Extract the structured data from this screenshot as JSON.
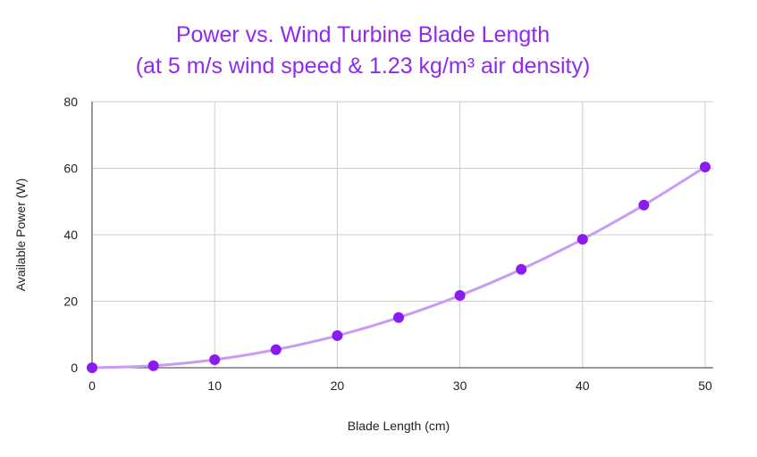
{
  "chart_data": {
    "type": "line",
    "title": "Power vs. Wind Turbine Blade Length",
    "subtitle": "(at 5 m/s wind speed & 1.23 kg/m³ air density)",
    "xlabel": "Blade Length (cm)",
    "ylabel": "Available Power (W)",
    "xlim": [
      0,
      50
    ],
    "ylim": [
      0,
      80
    ],
    "xticks": [
      "0",
      "10",
      "20",
      "30",
      "40",
      "50"
    ],
    "yticks": [
      "0",
      "20",
      "40",
      "60",
      "80"
    ],
    "grid": true,
    "smooth": true,
    "x": [
      0,
      5,
      10,
      15,
      20,
      25,
      30,
      35,
      40,
      45,
      50
    ],
    "series": [
      {
        "values": [
          0,
          0.6,
          2.42,
          5.43,
          9.66,
          15.09,
          21.74,
          29.59,
          38.64,
          48.91,
          60.38
        ]
      }
    ],
    "colors": {
      "title": "#8f2bec",
      "point": "#8a1cf0",
      "line": "#c89cf6",
      "grid": "#cccccc",
      "axis": "#333333"
    }
  }
}
